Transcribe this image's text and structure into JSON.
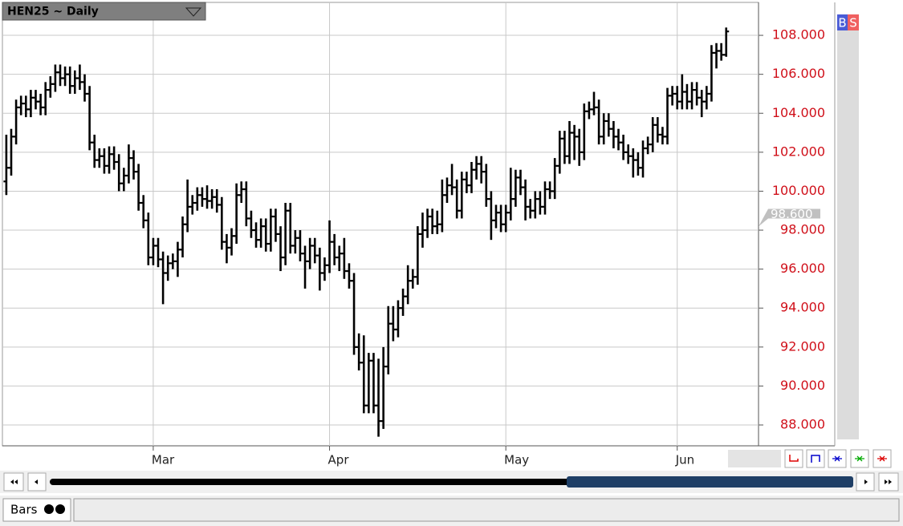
{
  "chart_data": {
    "type": "ohlc",
    "title": "HEN25 ~ Daily",
    "color": "#000000",
    "grid": true,
    "buy_label": "B",
    "sell_label": "S",
    "status_tab": "Bars",
    "price_marker": {
      "value": 98.6,
      "label": "98.600"
    },
    "xlim": [
      -0.8,
      153.6
    ],
    "xticks": [
      {
        "value": 30,
        "label": "Mar"
      },
      {
        "value": 66,
        "label": "Apr"
      },
      {
        "value": 102,
        "label": "May"
      },
      {
        "value": 137,
        "label": "Jun"
      }
    ],
    "ylim": [
      86.93,
      109.69
    ],
    "yticks": [
      {
        "value": 88,
        "label": "88.000"
      },
      {
        "value": 90,
        "label": "90.000"
      },
      {
        "value": 92,
        "label": "92.000"
      },
      {
        "value": 94,
        "label": "94.000"
      },
      {
        "value": 96,
        "label": "96.000"
      },
      {
        "value": 98,
        "label": "98.000"
      },
      {
        "value": 100,
        "label": "100.000"
      },
      {
        "value": 102,
        "label": "102.000"
      },
      {
        "value": 104,
        "label": "104.000"
      },
      {
        "value": 106,
        "label": "106.000"
      },
      {
        "value": 108,
        "label": "108.000"
      }
    ],
    "open": [
      100.5,
      101.2,
      102.8,
      104.3,
      104.5,
      104.2,
      104.8,
      104.6,
      104.3,
      105.2,
      105.5,
      106.1,
      105.8,
      106.0,
      105.4,
      105.8,
      105.6,
      105.0,
      102.5,
      101.6,
      101.8,
      101.3,
      101.9,
      101.5,
      100.4,
      100.8,
      101.7,
      101.0,
      99.4,
      98.5,
      96.6,
      97.2,
      96.5,
      95.8,
      96.3,
      96.4,
      97.0,
      98.3,
      99.2,
      99.4,
      99.8,
      99.6,
      99.5,
      99.7,
      99.3,
      97.4,
      97.1,
      97.7,
      99.8,
      100.1,
      98.6,
      98.0,
      97.5,
      98.2,
      97.3,
      98.7,
      97.8,
      96.6,
      99.0,
      97.2,
      97.6,
      96.8,
      96.4,
      97.2,
      96.7,
      95.8,
      96.2,
      97.4,
      96.6,
      96.8,
      95.9,
      95.4,
      92.0,
      91.2,
      89.0,
      91.3,
      89.0,
      88.2,
      91.0,
      93.2,
      92.9,
      94.0,
      94.6,
      95.4,
      95.6,
      97.8,
      98.0,
      98.7,
      98.2,
      98.3,
      99.8,
      100.3,
      100.2,
      99.0,
      100.6,
      100.3,
      101.1,
      101.4,
      101.0,
      99.6,
      98.5,
      98.9,
      98.3,
      98.9,
      99.6,
      100.7,
      100.2,
      99.2,
      99.0,
      99.6,
      99.2,
      100.1,
      100.0,
      101.3,
      102.7,
      101.8,
      103.0,
      102.8,
      102.0,
      104.1,
      104.2,
      104.3,
      102.8,
      103.6,
      103.2,
      102.8,
      102.5,
      102.0,
      101.8,
      101.6,
      101.2,
      102.2,
      102.4,
      103.4,
      102.9,
      102.8,
      104.9,
      105.0,
      104.6,
      105.1,
      104.6,
      105.2,
      104.8,
      104.6,
      105.0,
      107.1,
      107.2,
      107.0
    ],
    "high": [
      102.9,
      103.2,
      104.7,
      104.9,
      104.9,
      105.2,
      105.2,
      105.0,
      105.6,
      105.9,
      106.5,
      106.5,
      106.4,
      106.4,
      106.2,
      106.5,
      106.0,
      105.4,
      102.9,
      102.2,
      102.2,
      102.3,
      102.3,
      101.9,
      101.2,
      102.4,
      102.1,
      101.4,
      99.8,
      98.9,
      97.6,
      97.6,
      96.9,
      96.7,
      96.8,
      97.4,
      98.7,
      100.6,
      99.8,
      100.2,
      100.2,
      100.3,
      100.1,
      100.1,
      99.7,
      97.8,
      98.1,
      100.4,
      100.5,
      100.5,
      99.0,
      98.4,
      98.6,
      98.6,
      99.1,
      99.1,
      98.2,
      99.4,
      99.4,
      98.0,
      98.0,
      97.2,
      97.6,
      97.6,
      97.1,
      96.6,
      98.5,
      97.8,
      97.2,
      97.6,
      96.3,
      95.8,
      92.7,
      92.6,
      91.7,
      91.7,
      91.4,
      92.0,
      94.1,
      94.1,
      94.4,
      95.0,
      96.2,
      96.0,
      98.2,
      98.9,
      99.1,
      99.1,
      99.0,
      100.6,
      100.7,
      101.4,
      100.6,
      101.0,
      101.0,
      101.5,
      101.8,
      101.8,
      101.4,
      100.0,
      99.3,
      99.3,
      99.3,
      101.2,
      101.1,
      101.1,
      100.6,
      99.6,
      100.0,
      100.0,
      100.5,
      100.5,
      101.7,
      103.1,
      103.1,
      103.6,
      103.4,
      103.2,
      104.5,
      104.6,
      105.1,
      104.7,
      104.0,
      104.0,
      103.6,
      103.2,
      102.9,
      102.4,
      102.2,
      102.0,
      102.6,
      102.8,
      103.8,
      103.8,
      103.3,
      105.3,
      105.4,
      105.4,
      106.0,
      105.5,
      105.6,
      105.6,
      105.2,
      105.4,
      107.5,
      107.6,
      107.6,
      108.4
    ],
    "low": [
      99.8,
      100.8,
      102.4,
      103.9,
      103.8,
      103.8,
      104.2,
      103.9,
      103.9,
      104.8,
      105.1,
      105.4,
      105.4,
      105.0,
      105.0,
      105.2,
      104.6,
      102.1,
      101.2,
      101.2,
      100.9,
      100.9,
      101.1,
      100.0,
      100.0,
      100.4,
      100.6,
      99.0,
      98.1,
      96.2,
      96.2,
      96.1,
      94.2,
      95.4,
      96.0,
      95.6,
      96.6,
      97.9,
      98.8,
      99.0,
      99.2,
      99.1,
      99.1,
      98.9,
      97.0,
      96.3,
      96.7,
      97.3,
      99.4,
      98.2,
      97.6,
      97.1,
      97.1,
      96.9,
      96.9,
      97.4,
      95.9,
      96.2,
      96.8,
      96.8,
      96.4,
      95.0,
      96.0,
      96.3,
      94.9,
      95.4,
      95.8,
      96.2,
      95.9,
      95.5,
      95.0,
      91.6,
      90.8,
      88.6,
      88.6,
      88.6,
      87.4,
      87.8,
      90.6,
      92.3,
      92.5,
      93.6,
      94.2,
      95.0,
      95.2,
      97.1,
      97.6,
      97.8,
      97.8,
      97.9,
      99.4,
      99.8,
      98.6,
      98.6,
      99.9,
      99.9,
      100.6,
      100.4,
      99.2,
      97.5,
      98.1,
      97.9,
      97.9,
      98.5,
      99.2,
      99.8,
      98.5,
      98.6,
      98.6,
      98.8,
      98.8,
      99.6,
      99.6,
      100.9,
      101.4,
      101.4,
      101.6,
      101.3,
      101.6,
      103.7,
      103.9,
      102.4,
      102.4,
      102.8,
      102.2,
      102.1,
      101.6,
      101.4,
      100.7,
      100.8,
      100.7,
      101.9,
      102.0,
      102.5,
      102.4,
      102.4,
      104.4,
      104.2,
      104.2,
      104.2,
      104.2,
      104.4,
      103.8,
      104.2,
      104.6,
      106.3,
      106.7,
      106.9
    ],
    "close": [
      101.2,
      102.8,
      104.3,
      104.5,
      104.2,
      104.8,
      104.6,
      104.3,
      105.2,
      105.5,
      106.1,
      105.8,
      106.0,
      105.4,
      105.8,
      105.6,
      105.0,
      102.5,
      101.6,
      101.8,
      101.3,
      101.9,
      101.5,
      100.4,
      100.8,
      101.7,
      101.0,
      99.4,
      98.5,
      96.6,
      97.2,
      96.5,
      95.8,
      96.3,
      96.4,
      97.0,
      98.3,
      99.2,
      99.4,
      99.8,
      99.6,
      99.5,
      99.7,
      99.3,
      97.4,
      97.1,
      97.7,
      99.8,
      100.1,
      98.6,
      98.0,
      97.5,
      98.2,
      97.3,
      98.7,
      97.8,
      96.6,
      99.0,
      97.2,
      97.6,
      96.8,
      96.4,
      97.2,
      96.7,
      95.8,
      96.2,
      97.4,
      96.6,
      96.8,
      95.9,
      95.4,
      92.0,
      91.2,
      89.0,
      91.3,
      89.0,
      88.2,
      91.0,
      93.2,
      92.9,
      94.0,
      94.6,
      95.4,
      95.6,
      97.8,
      98.0,
      98.7,
      98.2,
      98.3,
      99.8,
      100.3,
      100.2,
      99.0,
      100.6,
      100.3,
      101.1,
      101.4,
      101.0,
      99.6,
      98.5,
      98.9,
      98.3,
      98.9,
      99.6,
      100.7,
      100.2,
      99.2,
      99.0,
      99.6,
      99.2,
      100.1,
      100.0,
      101.3,
      102.7,
      101.8,
      103.0,
      102.8,
      102.0,
      104.1,
      104.2,
      104.3,
      102.8,
      103.6,
      103.2,
      102.8,
      102.5,
      102.0,
      101.8,
      101.6,
      101.2,
      102.2,
      102.4,
      103.4,
      102.9,
      102.8,
      104.9,
      105.0,
      104.6,
      105.1,
      104.6,
      105.2,
      104.8,
      104.6,
      105.0,
      107.1,
      107.2,
      107.0,
      108.2
    ]
  }
}
